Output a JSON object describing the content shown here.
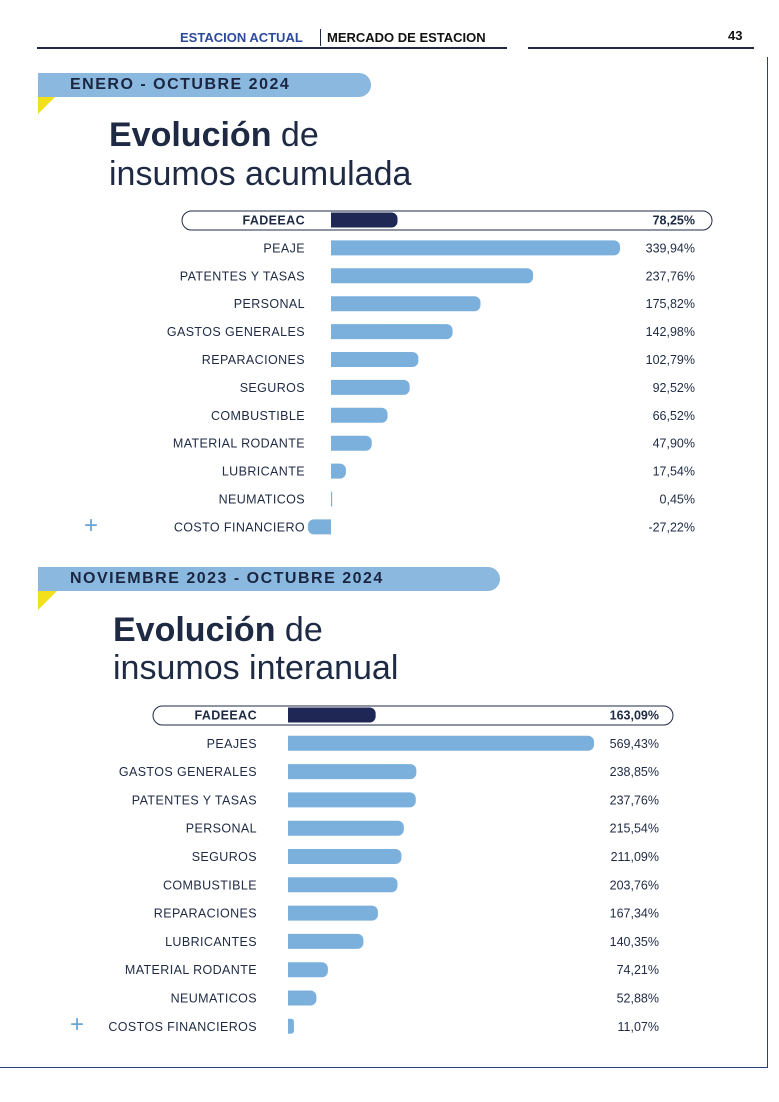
{
  "header": {
    "section": "ESTACION ACTUAL",
    "magazine": "MERCADO DE ESTACION",
    "page_number": "43"
  },
  "colors": {
    "bar": "#7bb0dc",
    "highlight_bar": "#1f2755",
    "pill": "#8ab8df",
    "accent_yellow": "#f2e01a",
    "text": "#1e2a44",
    "plus": "#6aa3d6"
  },
  "panels": [
    {
      "period": "ENERO - OCTUBRE 2024",
      "title_bold": "Evolución",
      "title_rest": " de",
      "title_line2": "insumos acumulada"
    },
    {
      "period": "NOVIEMBRE 2023 - OCTUBRE 2024",
      "title_bold": "Evolución",
      "title_rest": " de",
      "title_line2": "insumos interanual"
    }
  ],
  "chart_data": [
    {
      "type": "bar",
      "orientation": "horizontal",
      "highlight": "FADEEAC",
      "categories": [
        "FADEEAC",
        "PEAJE",
        "PATENTES Y TASAS",
        "PERSONAL",
        "GASTOS GENERALES",
        "REPARACIONES",
        "SEGUROS",
        "COMBUSTIBLE",
        "MATERIAL RODANTE",
        "LUBRICANTE",
        "NEUMATICOS",
        "COSTO FINANCIERO"
      ],
      "values": [
        78.25,
        339.94,
        237.76,
        175.82,
        142.98,
        102.79,
        92.52,
        66.52,
        47.9,
        17.54,
        0.45,
        -27.22
      ],
      "labels": [
        "78,25%",
        "339,94%",
        "237,76%",
        "175,82%",
        "142,98%",
        "102,79%",
        "92,52%",
        "66,52%",
        "47,90%",
        "17,54%",
        "0,45%",
        "-27,22%"
      ],
      "xlim": [
        -27.22,
        339.94
      ]
    },
    {
      "type": "bar",
      "orientation": "horizontal",
      "highlight": "FADEEAC",
      "categories": [
        "FADEEAC",
        "PEAJES",
        "GASTOS GENERALES",
        "PATENTES Y TASAS",
        "PERSONAL",
        "SEGUROS",
        "COMBUSTIBLE",
        "REPARACIONES",
        "LUBRICANTES",
        "MATERIAL RODANTE",
        "NEUMATICOS",
        "COSTOS FINANCIEROS"
      ],
      "values": [
        163.09,
        569.43,
        238.85,
        237.76,
        215.54,
        211.09,
        203.76,
        167.34,
        140.35,
        74.21,
        52.88,
        11.07
      ],
      "labels": [
        "163,09%",
        "569,43%",
        "238,85%",
        "237,76%",
        "215,54%",
        "211,09%",
        "203,76%",
        "167,34%",
        "140,35%",
        "74,21%",
        "52,88%",
        "11,07%"
      ],
      "xlim": [
        0,
        569.43
      ]
    }
  ]
}
